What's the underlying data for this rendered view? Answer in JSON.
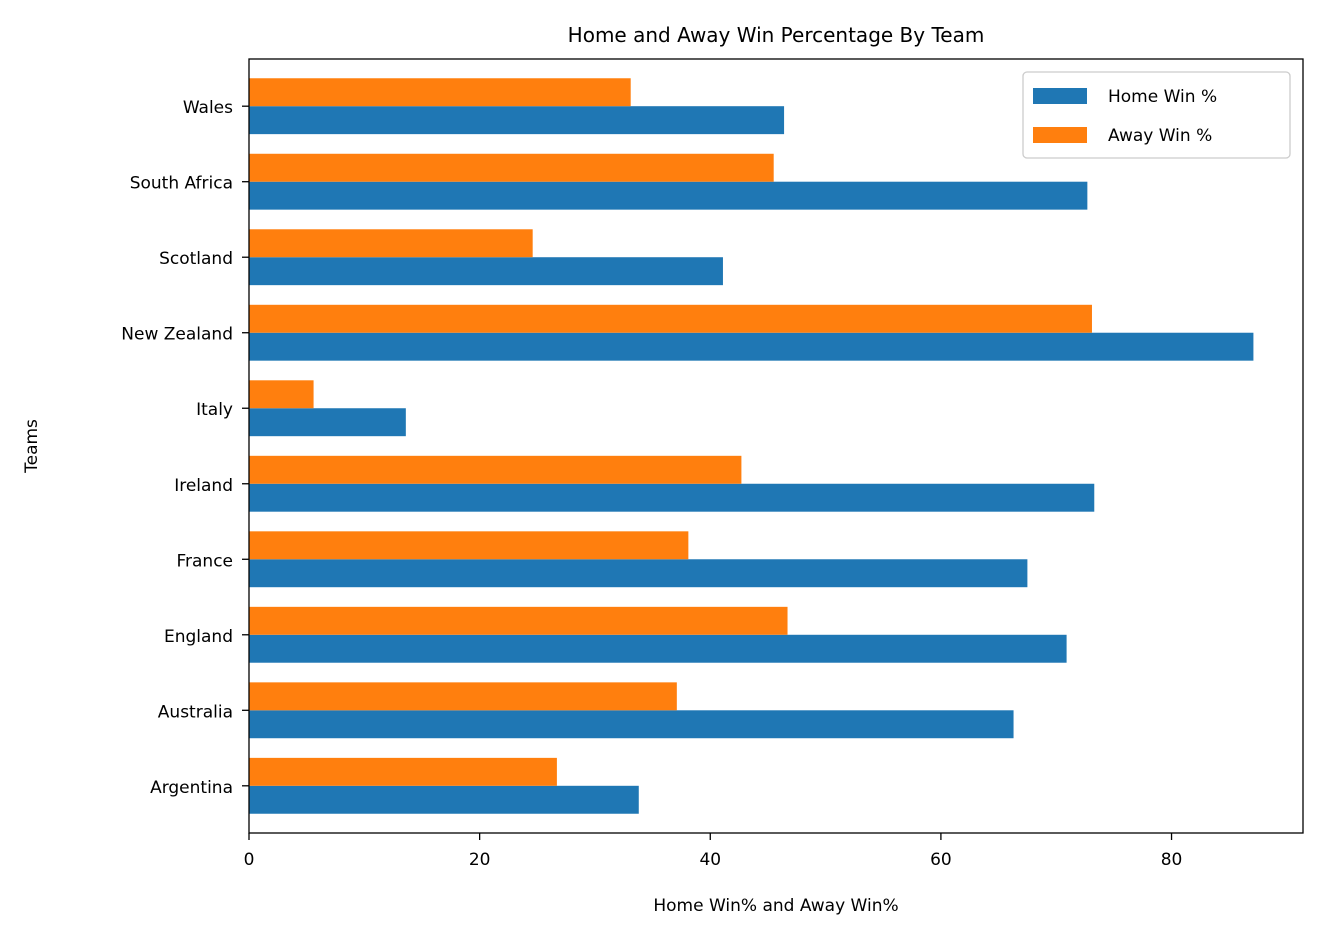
{
  "chart_data": {
    "type": "bar",
    "orientation": "horizontal",
    "title": "Home and Away Win Percentage By Team",
    "xlabel": "Home Win% and Away Win%",
    "ylabel": "Teams",
    "xlim": [
      0,
      91.4
    ],
    "xticks": [
      0,
      20,
      40,
      60,
      80
    ],
    "xtick_labels": [
      "0",
      "20",
      "40",
      "60",
      "80"
    ],
    "grid": false,
    "legend_position": "top-right",
    "categories": [
      "Argentina",
      "Australia",
      "England",
      "France",
      "Ireland",
      "Italy",
      "New Zealand",
      "Scotland",
      "South Africa",
      "Wales"
    ],
    "series": [
      {
        "name": "Home Win %",
        "color": "#1f77b4",
        "values": [
          33.8,
          66.3,
          70.9,
          67.5,
          73.3,
          13.6,
          87.1,
          41.1,
          72.7,
          46.4
        ]
      },
      {
        "name": "Away Win %",
        "color": "#ff7f0e",
        "values": [
          26.7,
          37.1,
          46.7,
          38.1,
          42.7,
          5.6,
          73.1,
          24.6,
          45.5,
          33.1
        ]
      }
    ]
  }
}
